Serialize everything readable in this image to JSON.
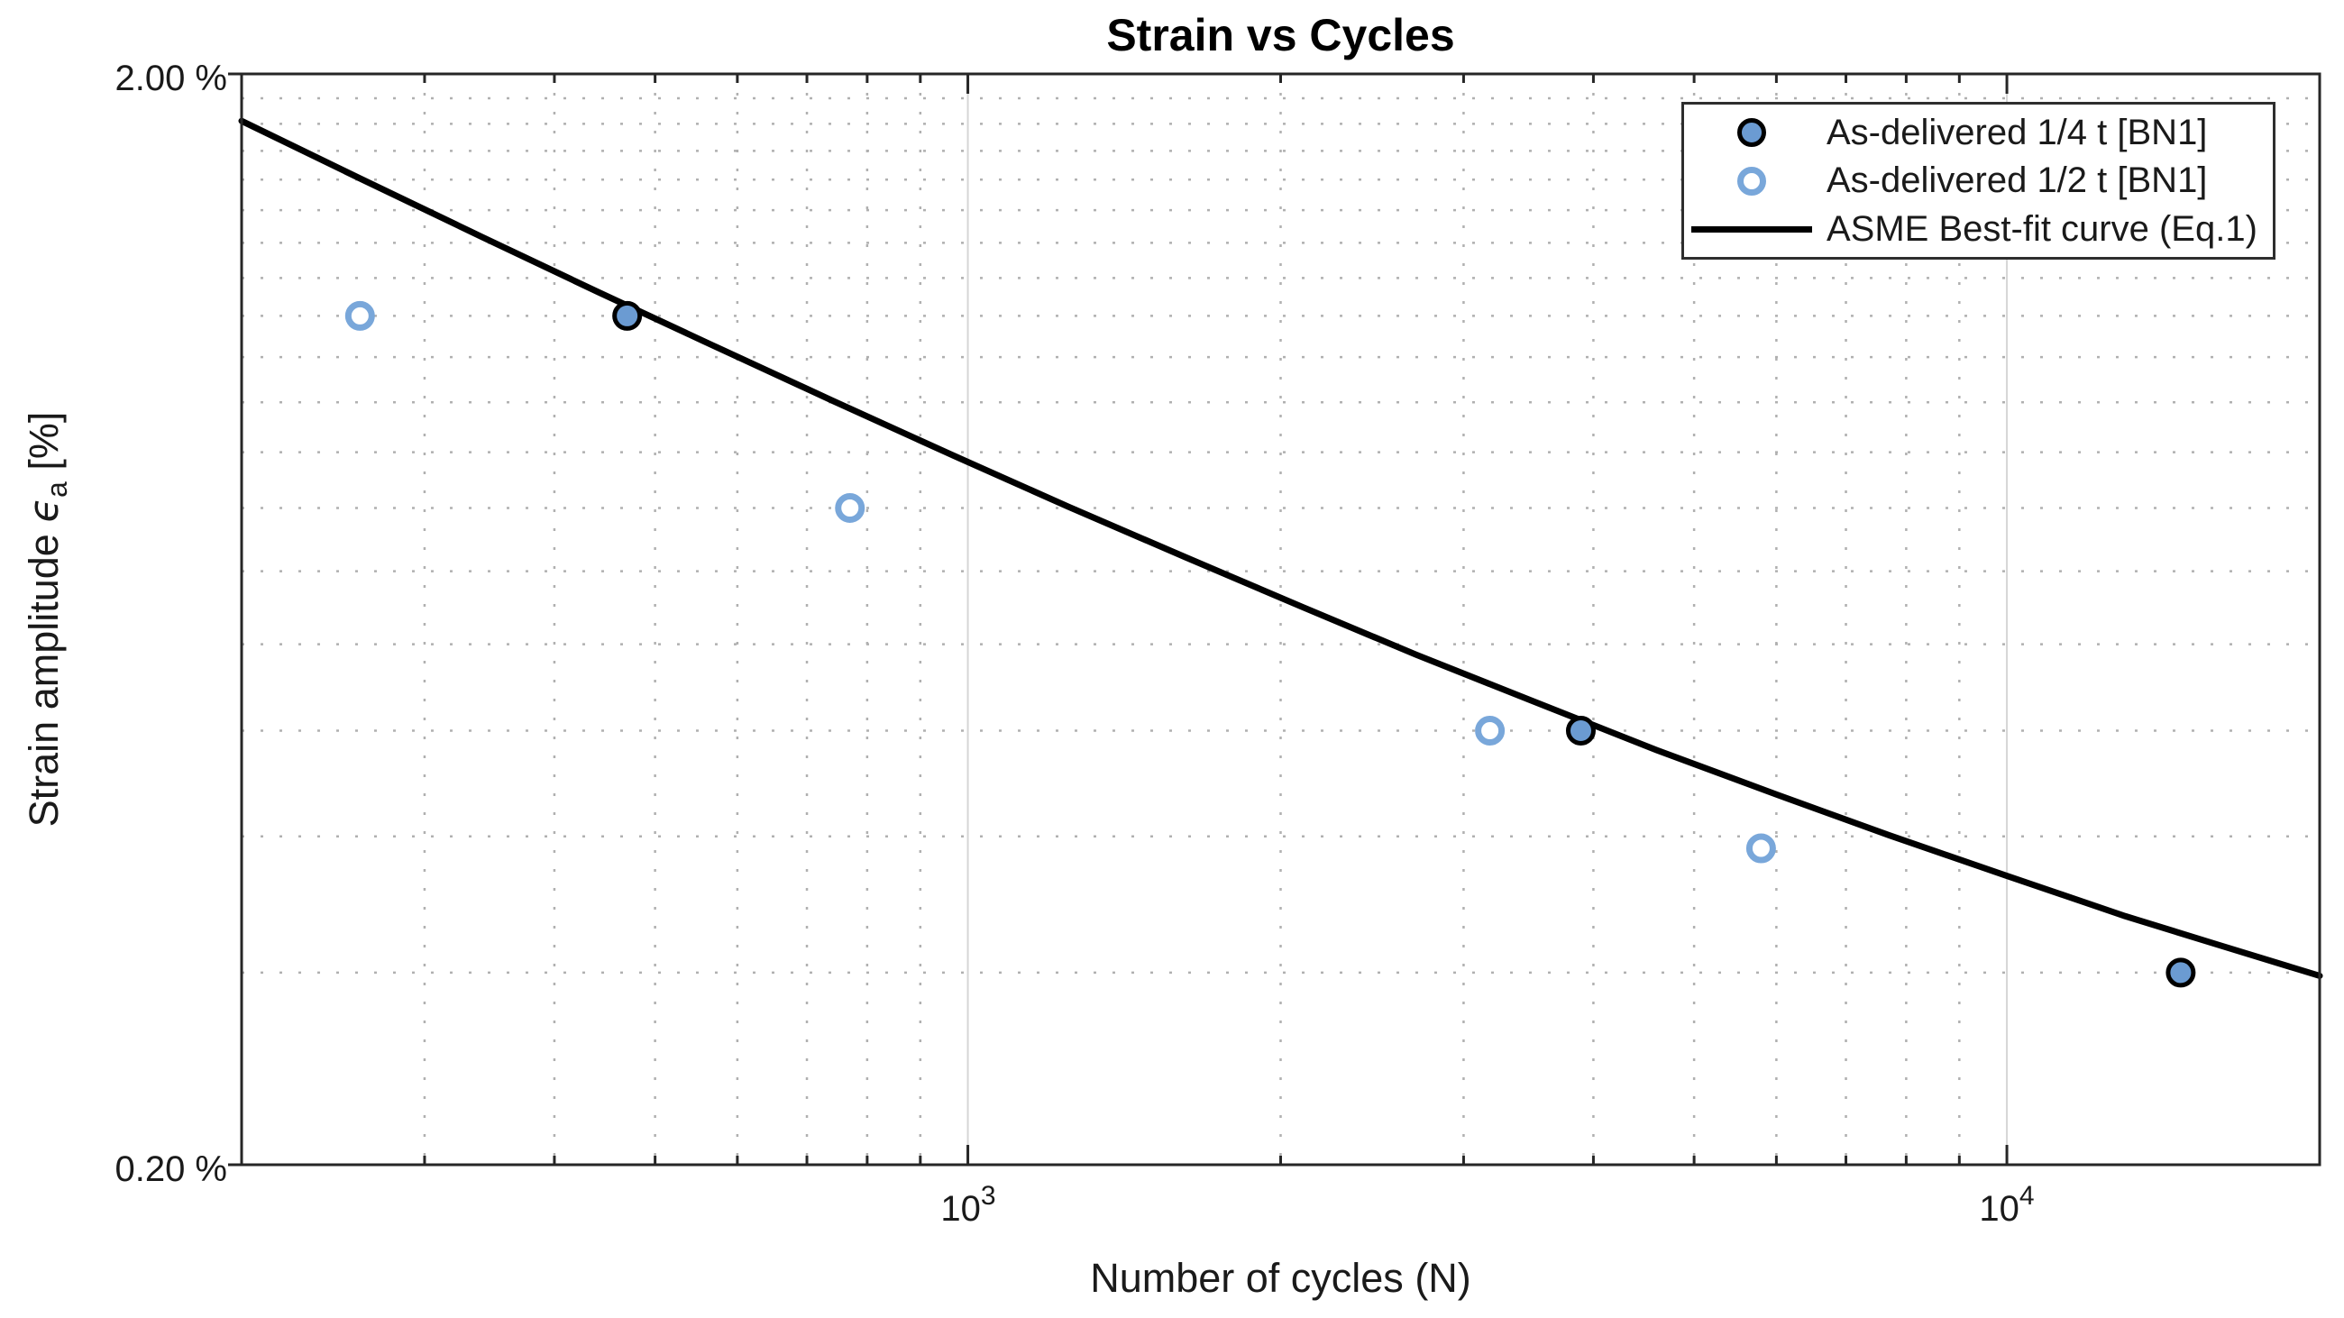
{
  "chart_data": {
    "type": "scatter",
    "title": "Strain vs Cycles",
    "xlabel": "Number of cycles (N)",
    "ylabel": "Strain amplitude ϵ_a [%]",
    "grid": {
      "major": "solid",
      "minor": "dotted"
    },
    "legend": {
      "position": "top-right"
    },
    "axes": {
      "x": {
        "label": "Number of cycles (N)",
        "scale": "log",
        "lim": [
          200,
          20000
        ],
        "major_ticks": [
          {
            "value": 1000,
            "base": "10",
            "exp": "3"
          },
          {
            "value": 10000,
            "base": "10",
            "exp": "4"
          }
        ],
        "minor_ticks": [
          300,
          400,
          500,
          600,
          700,
          800,
          900,
          2000,
          3000,
          4000,
          5000,
          6000,
          7000,
          8000,
          9000,
          20000
        ]
      },
      "y": {
        "label_prefix": "Strain amplitude ",
        "label_symbol": "ϵ",
        "label_sub": "a",
        "label_suffix": " [%]",
        "scale": "log",
        "lim": [
          0.2,
          2.0
        ],
        "major_ticks": [
          {
            "value": 2.0,
            "label": "2.00 %"
          },
          {
            "value": 0.2,
            "label": "0.20 %"
          }
        ],
        "minor_ticks": [
          0.3,
          0.4,
          0.5,
          0.6,
          0.7,
          0.8,
          0.9,
          1.0,
          1.1,
          1.2,
          1.3,
          1.4,
          1.5,
          1.6,
          1.7,
          1.8,
          1.9
        ]
      }
    },
    "series": [
      {
        "name": "As-delivered 1/4 t [BN1]",
        "type": "scatter",
        "marker": "filled-circle",
        "marker_fill": "#6B9BD2",
        "marker_edge": "#000000",
        "points": [
          [
            470,
            1.2
          ],
          [
            3890,
            0.5
          ],
          [
            14700,
            0.3
          ]
        ]
      },
      {
        "name": "As-delivered 1/2 t [BN1]",
        "type": "scatter",
        "marker": "open-circle",
        "marker_fill": "#ffffff",
        "marker_edge": "#79A7DA",
        "points": [
          [
            260,
            1.2
          ],
          [
            770,
            0.8
          ],
          [
            3180,
            0.5
          ],
          [
            5800,
            0.39
          ]
        ]
      },
      {
        "name": "ASME Best-fit curve (Eq.1)",
        "type": "line",
        "color": "#000000",
        "points": [
          [
            200,
            1.811
          ],
          [
            260,
            1.604
          ],
          [
            340,
            1.419
          ],
          [
            440,
            1.263
          ],
          [
            570,
            1.126
          ],
          [
            740,
            1.004
          ],
          [
            960,
            0.897
          ],
          [
            1250,
            0.802
          ],
          [
            1620,
            0.721
          ],
          [
            2100,
            0.649
          ],
          [
            2700,
            0.587
          ],
          [
            3500,
            0.532
          ],
          [
            4600,
            0.48
          ],
          [
            6000,
            0.437
          ],
          [
            7700,
            0.401
          ],
          [
            10000,
            0.368
          ],
          [
            13000,
            0.338
          ],
          [
            16000,
            0.318
          ],
          [
            20000,
            0.298
          ]
        ]
      }
    ],
    "colors": {
      "axis": "#262626",
      "major_grid": "#d6d6d6",
      "minor_grid": "#b0b0b0",
      "curve": "#000000"
    }
  }
}
